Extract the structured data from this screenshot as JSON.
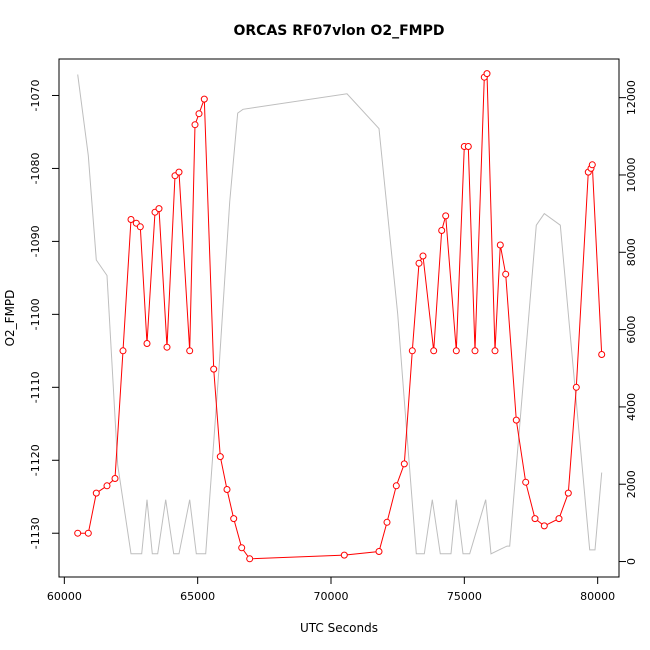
{
  "chart_data": {
    "type": "line",
    "title": "ORCAS RF07vlon O2_FMPD",
    "xlabel": "UTC Seconds",
    "ylabel": "O2_FMPD",
    "xlim": [
      59800,
      80800
    ],
    "ylim": [
      -1136,
      -1065
    ],
    "y2lim": [
      -400,
      13000
    ],
    "grid": false,
    "legend": "none",
    "x_ticks": [
      60000,
      65000,
      70000,
      75000,
      80000
    ],
    "y_ticks": [
      -1130,
      -1120,
      -1110,
      -1100,
      -1090,
      -1080,
      -1070
    ],
    "y2_ticks": [
      0,
      2000,
      4000,
      6000,
      8000,
      10000,
      12000
    ],
    "colors": {
      "primary": "#ff0000",
      "secondary": "#bebebe",
      "axis": "#000000"
    },
    "series": [
      {
        "axis": "left",
        "style": "line+points",
        "x": [
          60500,
          60900,
          61200,
          61600,
          61900,
          62200,
          62500,
          62700,
          62850,
          63100,
          63400,
          63550,
          63850,
          64150,
          64300,
          64700,
          64900,
          65050,
          65250,
          65600,
          65850,
          66100,
          66350,
          66650,
          66950,
          70500,
          71800,
          72100,
          72450,
          72750,
          73050,
          73300,
          73450,
          73850,
          74150,
          74300,
          74700,
          75000,
          75150,
          75400,
          75750,
          75850,
          76150,
          76350,
          76550,
          76950,
          77300,
          77650,
          78000,
          78550,
          78900,
          79200,
          79650,
          79750,
          79800,
          80150
        ],
        "y": [
          -1130,
          -1130,
          -1124.5,
          -1123.5,
          -1122.5,
          -1105,
          -1087,
          -1087.5,
          -1088,
          -1104,
          -1086,
          -1085.5,
          -1104.5,
          -1081,
          -1080.5,
          -1105,
          -1074,
          -1072.5,
          -1070.5,
          -1107.5,
          -1119.5,
          -1124,
          -1128,
          -1132,
          -1133.5,
          -1133,
          -1132.5,
          -1128.5,
          -1123.5,
          -1120.5,
          -1105,
          -1093,
          -1092,
          -1105,
          -1088.5,
          -1086.5,
          -1105,
          -1077,
          -1077,
          -1105,
          -1067.5,
          -1067,
          -1105,
          -1090.5,
          -1094.5,
          -1114.5,
          -1123,
          -1128,
          -1129,
          -1128,
          -1124.5,
          -1110,
          -1080.5,
          -1080,
          -1079.5,
          -1105.5
        ]
      },
      {
        "axis": "right",
        "style": "line",
        "x": [
          60500,
          60900,
          61200,
          61600,
          62000,
          62500,
          62900,
          63100,
          63300,
          63500,
          63800,
          64100,
          64300,
          64700,
          64950,
          65300,
          65800,
          66200,
          66500,
          66700,
          70600,
          71800,
          72500,
          72800,
          73200,
          73500,
          73800,
          74100,
          74500,
          74700,
          74950,
          75200,
          75800,
          76000,
          76300,
          76600,
          76700,
          77700,
          78000,
          78600,
          79700,
          79900,
          80150
        ],
        "y": [
          12600,
          10500,
          7800,
          7400,
          2500,
          200,
          200,
          1600,
          200,
          200,
          1600,
          200,
          200,
          1600,
          200,
          200,
          5000,
          9300,
          11600,
          11700,
          12100,
          11200,
          6400,
          3700,
          200,
          200,
          1600,
          200,
          200,
          1600,
          200,
          200,
          1600,
          200,
          300,
          400,
          400,
          8700,
          9000,
          8700,
          300,
          300,
          2300
        ]
      }
    ]
  }
}
